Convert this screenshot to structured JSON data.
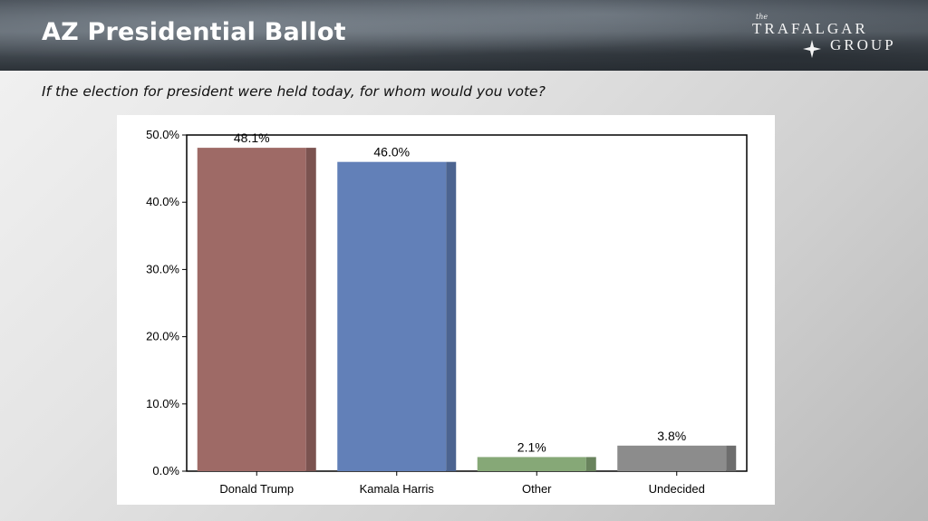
{
  "header": {
    "title": "AZ Presidential Ballot",
    "logo": {
      "the": "the",
      "line1": "TRAFALGAR",
      "line2": "GROUP"
    }
  },
  "question": "If the election for president were held today, for whom would you vote?",
  "colors": {
    "trump": "#9e6a66",
    "harris": "#6280b8",
    "other": "#86a877",
    "undecided": "#8c8c8c"
  },
  "chart_data": {
    "type": "bar",
    "categories": [
      "Donald Trump",
      "Kamala Harris",
      "Other",
      "Undecided"
    ],
    "values": [
      48.1,
      46.0,
      2.1,
      3.8
    ],
    "value_labels": [
      "48.1%",
      "46.0%",
      "2.1%",
      "3.8%"
    ],
    "ylim": [
      0,
      50
    ],
    "yticks": [
      0,
      10,
      20,
      30,
      40,
      50
    ],
    "ytick_labels": [
      "0.0%",
      "10.0%",
      "20.0%",
      "30.0%",
      "40.0%",
      "50.0%"
    ],
    "bar_colors": [
      "#9e6a66",
      "#6280b8",
      "#86a877",
      "#8c8c8c"
    ],
    "grid": false,
    "legend": "none"
  }
}
